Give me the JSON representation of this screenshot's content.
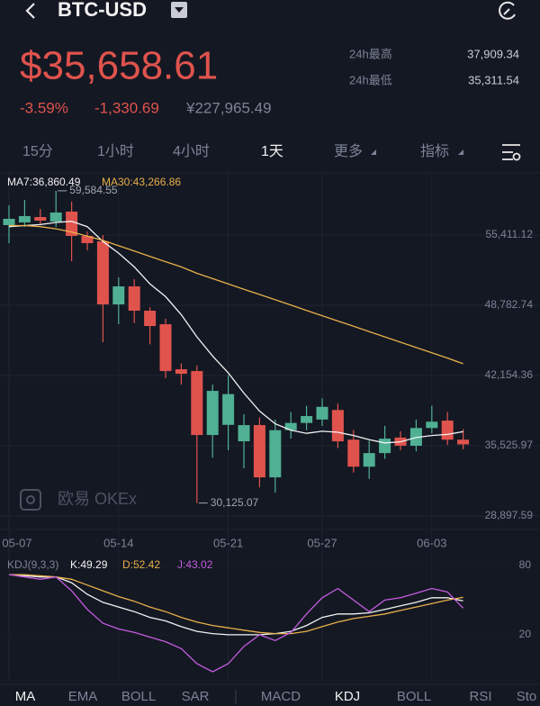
{
  "header": {
    "symbol": "BTC-USD"
  },
  "ticker": {
    "price": "$35,658.61",
    "change_pct": "-3.59%",
    "change": "-1,330.69",
    "cny": "¥227,965.49",
    "high_label": "24h最高",
    "high": "37,909.34",
    "low_label": "24h最低",
    "low": "35,311.54"
  },
  "tabs": [
    "15分",
    "1小时",
    "4小时",
    "1天",
    "更多",
    "指标"
  ],
  "watermark": "欧易 OKEx",
  "indicator_tabs": [
    "MA",
    "EMA",
    "BOLL",
    "SAR",
    "MACD",
    "KDJ",
    "BOLL",
    "RSI",
    "Sto"
  ],
  "chart_data": [
    {
      "type": "candlestick",
      "categories": [
        "05-07",
        null,
        null,
        null,
        null,
        null,
        null,
        "05-14",
        null,
        null,
        null,
        null,
        null,
        null,
        "05-21",
        null,
        null,
        null,
        null,
        null,
        "05-27",
        null,
        null,
        null,
        null,
        null,
        null,
        "06-03",
        null,
        null
      ],
      "open": [
        56346,
        56601,
        57111,
        56686,
        57621,
        55326,
        54816,
        48866,
        50566,
        48271,
        46996,
        42746,
        42576,
        36541,
        37500,
        35946,
        37476,
        32546,
        37000,
        37680,
        38000,
        38900,
        36100,
        33556,
        34836,
        36300,
        35526,
        37200,
        37900,
        36100
      ],
      "high": [
        58216,
        58726,
        57876,
        59584.55,
        58556,
        55750,
        55411,
        51416,
        51246,
        48600,
        47500,
        43300,
        43100,
        41300,
        42200,
        38500,
        38200,
        38000,
        38700,
        39300,
        40000,
        39500,
        37000,
        36000,
        37400,
        36900,
        38000,
        39300,
        38700,
        37100
      ],
      "low": [
        54646,
        56176,
        56346,
        56176,
        52946,
        53966,
        45300,
        46996,
        47100,
        45100,
        41900,
        41300,
        30125.07,
        34400,
        35100,
        33400,
        31600,
        31100,
        36200,
        37000,
        37400,
        35300,
        33000,
        32400,
        34300,
        35100,
        35000,
        36700,
        35600,
        35200
      ],
      "close": [
        56941,
        57196,
        56771,
        57536,
        55326,
        54646,
        48866,
        50566,
        48271,
        46826,
        42576,
        42321,
        36541,
        40706,
        40400,
        37476,
        32546,
        37000,
        37680,
        38330,
        39200,
        35946,
        33556,
        34836,
        36200,
        35526,
        37200,
        37800,
        36100,
        35658.61
      ],
      "up_color": "#4fb093",
      "down_color": "#e0534d",
      "series": [
        {
          "name": "MA7:36,860.49",
          "color": "#f2f2f2",
          "values": [
            56200,
            56300,
            56400,
            56600,
            56700,
            56200,
            54800,
            53700,
            52400,
            50800,
            49600,
            47900,
            45800,
            44000,
            42400,
            40500,
            38800,
            37600,
            37000,
            36700,
            36900,
            36800,
            36500,
            36100,
            35800,
            35900,
            36300,
            36500,
            36600,
            36860.49
          ]
        },
        {
          "name": "MA30:43,266.86",
          "color": "#e8b04a",
          "values": [
            56300,
            56300,
            56200,
            56000,
            55700,
            55300,
            54900,
            54400,
            53900,
            53400,
            52900,
            52400,
            51800,
            51300,
            50800,
            50300,
            49800,
            49300,
            48800,
            48300,
            47800,
            47300,
            46800,
            46300,
            45800,
            45300,
            44800,
            44300,
            43800,
            43266.86
          ]
        }
      ],
      "annotations": [
        {
          "label": "59,584.55",
          "value": 59584.55
        },
        {
          "label": "30,125.07",
          "value": 30125.07
        }
      ],
      "ylim": [
        27880,
        61020
      ],
      "yticks": [
        {
          "value": 55411.12,
          "label": "55,411.12"
        },
        {
          "value": 48782.74,
          "label": "48,782.74"
        },
        {
          "value": 42154.36,
          "label": "42,154.36"
        },
        {
          "value": 35525.97,
          "label": "35,525.97"
        },
        {
          "value": 28897.59,
          "label": "28,897.59"
        }
      ],
      "grid": true
    },
    {
      "type": "line",
      "title": "KDJ(9,3,3)",
      "series": [
        {
          "name": "K:49.29",
          "color": "#f2f2f2",
          "values": [
            72,
            71,
            70,
            70,
            65,
            55,
            48,
            44,
            40,
            35,
            32,
            27,
            23,
            21,
            20,
            20,
            20,
            21,
            23,
            28,
            35,
            38,
            38,
            39,
            42,
            45,
            48,
            52,
            52,
            49.29
          ]
        },
        {
          "name": "D:52.42",
          "color": "#e8b04a",
          "values": [
            72,
            72,
            71,
            70,
            68,
            63,
            58,
            53,
            49,
            44,
            40,
            35,
            31,
            28,
            26,
            24,
            22,
            21,
            21,
            23,
            27,
            31,
            34,
            36,
            38,
            41,
            44,
            47,
            50,
            52.42
          ]
        },
        {
          "name": "J:43.02",
          "color": "#c45ce0",
          "values": [
            72,
            70,
            68,
            70,
            58,
            42,
            30,
            25,
            22,
            18,
            14,
            8,
            -5,
            -12,
            -5,
            10,
            20,
            15,
            22,
            38,
            52,
            60,
            50,
            40,
            50,
            52,
            56,
            60,
            57,
            43.02
          ]
        }
      ],
      "ylim": [
        -19,
        90
      ],
      "yticks": [
        80,
        20
      ]
    }
  ]
}
